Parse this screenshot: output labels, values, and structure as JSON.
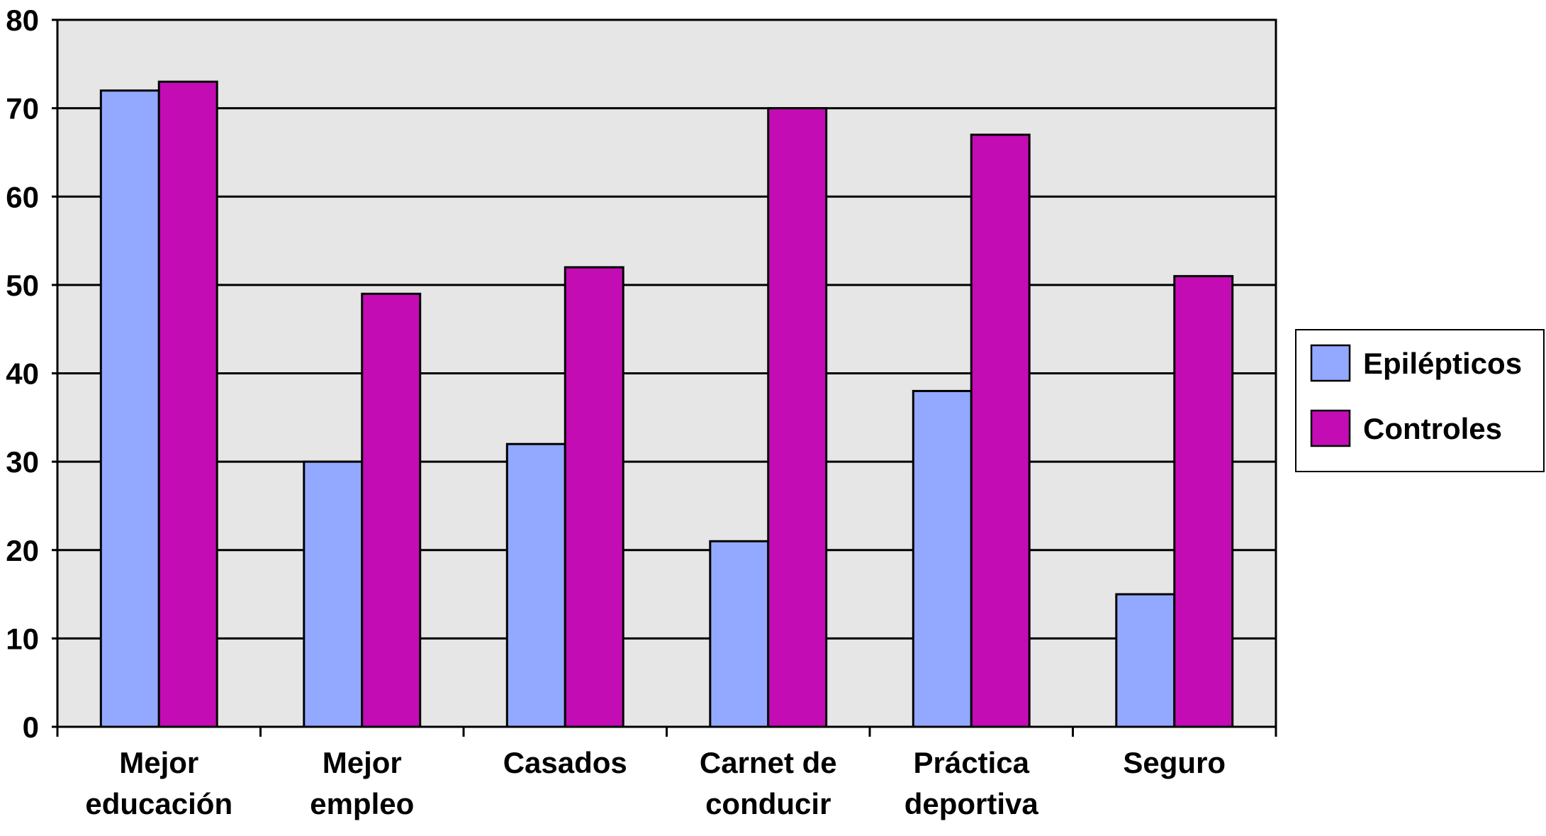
{
  "chart_data": {
    "type": "bar",
    "title": "",
    "xlabel": "",
    "ylabel": "",
    "ylim": [
      0,
      80
    ],
    "yticks": [
      0,
      10,
      20,
      30,
      40,
      50,
      60,
      70,
      80
    ],
    "grid": true,
    "legend_position": "right",
    "categories": [
      [
        "Mejor",
        "educación"
      ],
      [
        "Mejor",
        "empleo"
      ],
      [
        "Casados"
      ],
      [
        "Carnet de",
        "conducir"
      ],
      [
        "Práctica",
        "deportiva"
      ],
      [
        "Seguro"
      ]
    ],
    "series": [
      {
        "name": "Epilépticos",
        "color": "#93A9FF",
        "values": [
          72,
          30,
          32,
          21,
          38,
          15
        ]
      },
      {
        "name": "Controles",
        "color": "#C40CB4",
        "values": [
          73,
          49,
          52,
          70,
          67,
          51
        ]
      }
    ]
  }
}
